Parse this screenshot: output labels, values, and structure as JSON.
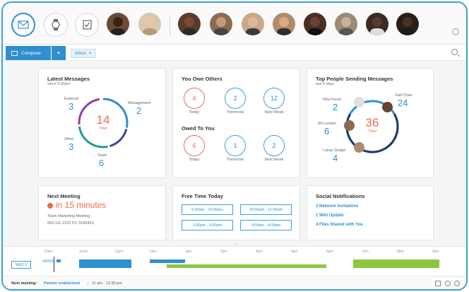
{
  "toolbar": {
    "compose_label": "Compose",
    "inbox_tag": "Inbox",
    "inbox_close": "×"
  },
  "latest_messages": {
    "title": "Latest Messages",
    "subtitle": "since 5:00pm",
    "total": "14",
    "total_label": "Total",
    "segments": [
      {
        "name": "External",
        "value": "3"
      },
      {
        "name": "Management",
        "value": "2"
      },
      {
        "name": "Other",
        "value": "3"
      },
      {
        "name": "Team",
        "value": "6"
      }
    ]
  },
  "owe": {
    "title": "You Owe Others",
    "owed_title": "Owed To You",
    "you_owe": [
      {
        "value": "4",
        "label": "Today"
      },
      {
        "value": "2",
        "label": "Tomorrow"
      },
      {
        "value": "12",
        "label": "Next Week"
      }
    ],
    "owed_to_you": [
      {
        "value": "6",
        "label": "Today"
      },
      {
        "value": "1",
        "label": "Tomorrow"
      },
      {
        "value": "2",
        "label": "Next Week"
      }
    ]
  },
  "top_people": {
    "title": "Top People Sending Messages",
    "subtitle": "last 5 days",
    "total": "36",
    "total_label": "Total",
    "people": [
      {
        "name": "Rita Ferrar",
        "value": "2"
      },
      {
        "name": "Gail Chao",
        "value": "24"
      },
      {
        "name": "Jim Lender",
        "value": "6"
      },
      {
        "name": "Lukas Geiger",
        "value": "4"
      }
    ]
  },
  "next_meeting": {
    "title": "Next Meeting",
    "countdown": "in 15 minutes",
    "name": "Team Marketing Meeting",
    "dial": "555-111-2222 PC 3245453"
  },
  "free_time": {
    "title": "Free Time Today",
    "slots": [
      "9:00am - 10:00am",
      "10:00am - 11:00am",
      "1:00pm - 2:00pm",
      "3:00pm - 4:00pm"
    ]
  },
  "social": {
    "title": "Social Notifications",
    "items": [
      "3 Network Invitations",
      "1 Wiki Update",
      "4 Files Shared with You"
    ]
  },
  "timeline": {
    "day": "WED 3",
    "ticks": [
      "10am",
      "11am",
      "12pm",
      "1pm",
      "2pm",
      "3pm",
      "4pm",
      "5pm",
      "6pm",
      "7pm",
      "8pm",
      "9pm"
    ]
  },
  "footer": {
    "label": "Next meeting:",
    "meeting": "Partner enablement",
    "sep": "|",
    "time": "11 am - 12:30 pm"
  },
  "colors": {
    "accent": "#2f8fcf",
    "alert": "#f06a4a",
    "green": "#8cc63f",
    "purple": "#8e3ea6",
    "teal": "#1b9c95"
  }
}
